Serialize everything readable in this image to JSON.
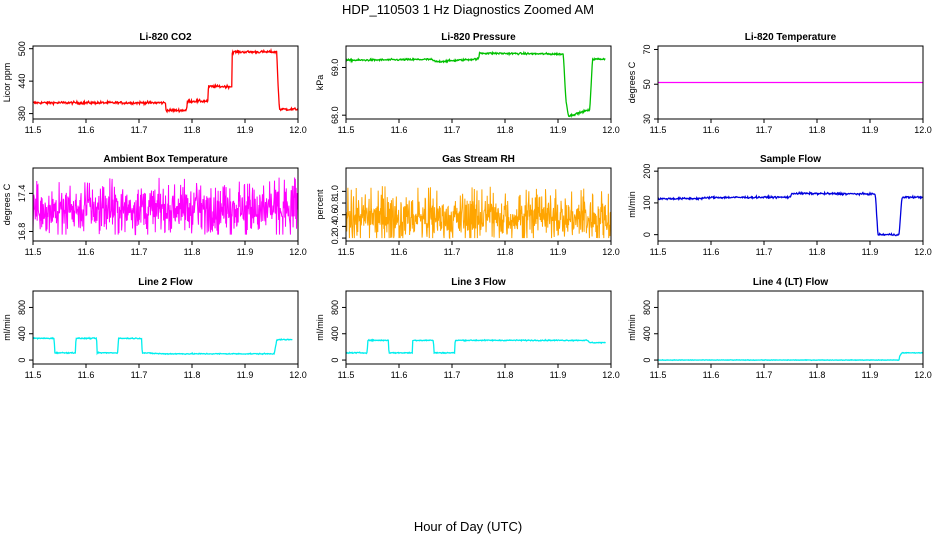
{
  "figure": {
    "title": "HDP_110503  1 Hz Diagnostics Zoomed AM",
    "xlabel": "Hour of Day (UTC)"
  },
  "chart_data": [
    {
      "type": "line",
      "title": "Li-820 CO2",
      "ylabel": "Licor ppm",
      "xlim": [
        11.5,
        12.0
      ],
      "ylim": [
        370,
        505
      ],
      "xticks": [
        "11.5",
        "11.6",
        "11.7",
        "11.8",
        "11.9",
        "12.0"
      ],
      "yticks": [
        "380",
        "440",
        "500"
      ],
      "ytick_values": [
        380,
        440,
        500
      ],
      "color": "#ff0000",
      "noise": 1.2,
      "x": [
        11.5,
        11.75,
        11.751,
        11.79,
        11.791,
        11.83,
        11.831,
        11.875,
        11.876,
        11.96,
        11.962,
        11.965,
        12.0
      ],
      "y": [
        400,
        400,
        386,
        386,
        403,
        403,
        430,
        430,
        494,
        494,
        440,
        388,
        388
      ]
    },
    {
      "type": "line",
      "title": "Li-820 Pressure",
      "ylabel": "kPa",
      "xlim": [
        11.5,
        12.0
      ],
      "ylim": [
        67.92,
        69.45
      ],
      "xticks": [
        "11.5",
        "11.6",
        "11.7",
        "11.8",
        "11.9",
        "12.0"
      ],
      "yticks": [
        "68.0",
        "69.0"
      ],
      "ytick_values": [
        68.0,
        69.0
      ],
      "color": "#00c000",
      "noise": 0.01,
      "x": [
        11.5,
        11.66,
        11.67,
        11.75,
        11.752,
        11.91,
        11.915,
        11.92,
        11.955,
        11.96,
        11.965,
        11.99
      ],
      "y": [
        69.15,
        69.17,
        69.12,
        69.18,
        69.3,
        69.28,
        68.3,
        67.98,
        68.1,
        68.1,
        69.17,
        69.18
      ]
    },
    {
      "type": "line",
      "title": "Li-820 Temperature",
      "ylabel": "degrees C",
      "xlim": [
        11.5,
        12.0
      ],
      "ylim": [
        30,
        72
      ],
      "xticks": [
        "11.5",
        "11.6",
        "11.7",
        "11.8",
        "11.9",
        "12.0"
      ],
      "yticks": [
        "30",
        "50",
        "70"
      ],
      "ytick_values": [
        30,
        50,
        70
      ],
      "color": "#ff00ff",
      "noise": 0,
      "x": [
        11.5,
        12.0
      ],
      "y": [
        51,
        51
      ]
    },
    {
      "type": "noise",
      "title": "Ambient Box Temperature",
      "ylabel": "degrees C",
      "xlim": [
        11.5,
        12.0
      ],
      "ylim": [
        16.65,
        17.8
      ],
      "xticks": [
        "11.5",
        "11.6",
        "11.7",
        "11.8",
        "11.9",
        "12.0"
      ],
      "yticks": [
        "16.8",
        "17.4"
      ],
      "ytick_values": [
        16.8,
        17.4
      ],
      "color": "#ff00ff",
      "center": 17.15,
      "spread": 0.17,
      "low": 16.75,
      "high": 17.65
    },
    {
      "type": "noise",
      "title": "Gas Stream RH",
      "ylabel": "percent",
      "xlim": [
        11.5,
        12.0
      ],
      "ylim": [
        0.15,
        1.4
      ],
      "xticks": [
        "11.5",
        "11.6",
        "11.7",
        "11.8",
        "11.9",
        "12.0"
      ],
      "yticks": [
        "0.2",
        "0.4",
        "0.6",
        "0.8",
        "1.0"
      ],
      "ytick_values": [
        0.2,
        0.4,
        0.6,
        0.8,
        1.0
      ],
      "color": "#ffa500",
      "center": 0.55,
      "spread": 0.18,
      "low": 0.2,
      "high": 1.25
    },
    {
      "type": "line",
      "title": "Sample Flow",
      "ylabel": "ml/min",
      "xlim": [
        11.5,
        12.0
      ],
      "ylim": [
        -20,
        210
      ],
      "xticks": [
        "11.5",
        "11.6",
        "11.7",
        "11.8",
        "11.9",
        "12.0"
      ],
      "yticks": [
        "0",
        "100",
        "200"
      ],
      "ytick_values": [
        0,
        100,
        200
      ],
      "color": "#0000dd",
      "noise": 1.5,
      "x": [
        11.5,
        11.58,
        11.6,
        11.75,
        11.752,
        11.91,
        11.915,
        11.95,
        11.955,
        11.96,
        11.965,
        12.0
      ],
      "y": [
        113,
        114,
        117,
        118,
        130,
        128,
        0,
        0,
        0,
        115,
        118,
        118
      ]
    },
    {
      "type": "line",
      "title": "Line 2 Flow",
      "ylabel": "ml/min",
      "xlim": [
        11.5,
        12.0
      ],
      "ylim": [
        -60,
        1050
      ],
      "xticks": [
        "11.5",
        "11.6",
        "11.7",
        "11.8",
        "11.9",
        "12.0"
      ],
      "yticks": [
        "0",
        "400",
        "800"
      ],
      "ytick_values": [
        0,
        400,
        800
      ],
      "color": "#00eeee",
      "noise": 4,
      "x": [
        11.5,
        11.54,
        11.541,
        11.58,
        11.581,
        11.62,
        11.621,
        11.66,
        11.661,
        11.705,
        11.706,
        11.745,
        11.955,
        11.96,
        11.99
      ],
      "y": [
        330,
        330,
        110,
        110,
        330,
        330,
        110,
        110,
        330,
        330,
        110,
        95,
        95,
        310,
        310
      ]
    },
    {
      "type": "line",
      "title": "Line 3 Flow",
      "ylabel": "ml/min",
      "xlim": [
        11.5,
        12.0
      ],
      "ylim": [
        -60,
        1050
      ],
      "xticks": [
        "11.5",
        "11.6",
        "11.7",
        "11.8",
        "11.9",
        "12.0"
      ],
      "yticks": [
        "0",
        "400",
        "800"
      ],
      "ytick_values": [
        0,
        400,
        800
      ],
      "color": "#00eeee",
      "noise": 4,
      "x": [
        11.5,
        11.54,
        11.541,
        11.58,
        11.581,
        11.625,
        11.626,
        11.665,
        11.666,
        11.705,
        11.706,
        11.955,
        11.96,
        11.99
      ],
      "y": [
        110,
        110,
        300,
        300,
        110,
        110,
        300,
        300,
        110,
        110,
        300,
        300,
        265,
        265
      ]
    },
    {
      "type": "line",
      "title": "Line 4 (LT) Flow",
      "ylabel": "ml/min",
      "xlim": [
        11.5,
        12.0
      ],
      "ylim": [
        -60,
        1050
      ],
      "xticks": [
        "11.5",
        "11.6",
        "11.7",
        "11.8",
        "11.9",
        "12.0"
      ],
      "yticks": [
        "0",
        "400",
        "800"
      ],
      "ytick_values": [
        0,
        400,
        800
      ],
      "color": "#00eeee",
      "noise": 2,
      "x": [
        11.5,
        11.955,
        11.956,
        11.96,
        12.0
      ],
      "y": [
        0,
        0,
        60,
        110,
        110
      ]
    }
  ]
}
